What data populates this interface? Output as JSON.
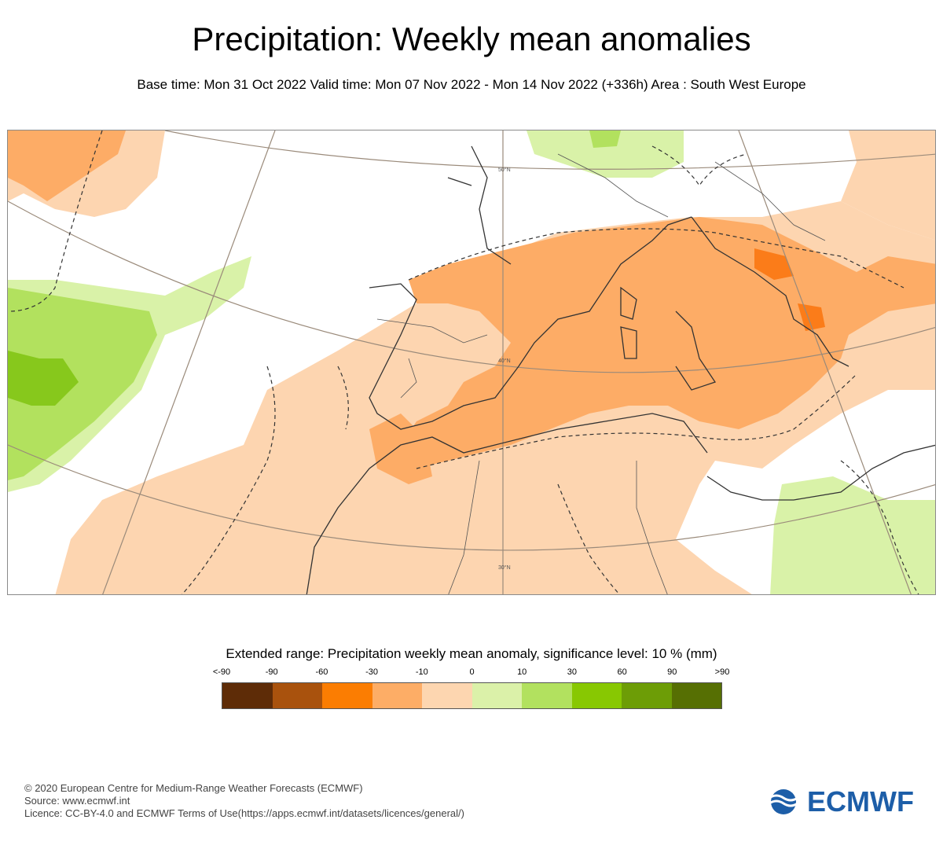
{
  "title": "Precipitation: Weekly mean anomalies",
  "subtitle": "Base time: Mon 31 Oct 2022 Valid time: Mon 07 Nov 2022 - Mon 14 Nov 2022 (+336h) Area : South West Europe",
  "map": {
    "area": "South West Europe",
    "latitude_labels": [
      "50°N",
      "40°N",
      "30°N"
    ],
    "colors": {
      "water": "#ffffff",
      "dry_light": "#fdd5b0",
      "dry_mid": "#fdac66",
      "dry_strong": "#fb7c19",
      "wet_light": "#d9f2a8",
      "wet_mid": "#b2e15e",
      "wet_strong": "#87c81c",
      "graticule": "#9a8a7a",
      "coastline": "#333333"
    }
  },
  "legend": {
    "title": "Extended range: Precipitation weekly mean anomaly, significance level: 10 % (mm)",
    "labels": [
      "<-90",
      "-90",
      "-60",
      "-30",
      "-10",
      "0",
      "10",
      "30",
      "60",
      "90",
      ">90"
    ],
    "colors": [
      "#5e2c07",
      "#a9520d",
      "#fb7d02",
      "#fdad66",
      "#fdd6b0",
      "#dbf1a9",
      "#b2e15f",
      "#88c802",
      "#6d9d06",
      "#566f03"
    ]
  },
  "footer": {
    "copyright": "© 2020 European Centre for Medium-Range Weather Forecasts (ECMWF)",
    "source": "Source: www.ecmwf.int",
    "licence": "Licence: CC-BY-4.0 and ECMWF Terms of Use(https://apps.ecmwf.int/datasets/licences/general/)"
  },
  "logo": {
    "text": "ECMWF",
    "color": "#1d5ea8"
  }
}
